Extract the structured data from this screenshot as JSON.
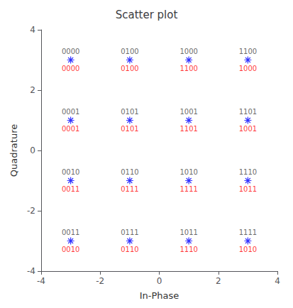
{
  "chart_data": {
    "type": "scatter",
    "title": "Scatter plot",
    "xlabel": "In-Phase",
    "ylabel": "Quadrature",
    "xlim": [
      -4,
      4
    ],
    "ylim": [
      -4,
      4
    ],
    "xticks": [
      -4,
      -2,
      0,
      2,
      4
    ],
    "yticks": [
      -4,
      -2,
      0,
      2,
      4
    ],
    "grid": false,
    "marker": "star",
    "color": "#0000ff",
    "x": [
      -3,
      -1,
      1,
      3,
      -3,
      -1,
      1,
      3,
      -3,
      -1,
      1,
      3,
      -3,
      -1,
      1,
      3
    ],
    "values": [
      3,
      3,
      3,
      3,
      1,
      1,
      1,
      1,
      -1,
      -1,
      -1,
      -1,
      -3,
      -3,
      -3,
      -3
    ],
    "annotations": [
      {
        "position": "above",
        "color": "#404040",
        "texts": [
          "0000",
          "0100",
          "1000",
          "1100",
          "0001",
          "0101",
          "1001",
          "1101",
          "0010",
          "0110",
          "1010",
          "1110",
          "0011",
          "0111",
          "1011",
          "1111"
        ]
      },
      {
        "position": "below",
        "color": "#ff0000",
        "texts": [
          "0000",
          "0100",
          "1100",
          "1000",
          "0001",
          "0101",
          "1101",
          "1001",
          "0011",
          "0111",
          "1111",
          "1011",
          "0010",
          "0110",
          "1110",
          "1010"
        ]
      }
    ]
  }
}
